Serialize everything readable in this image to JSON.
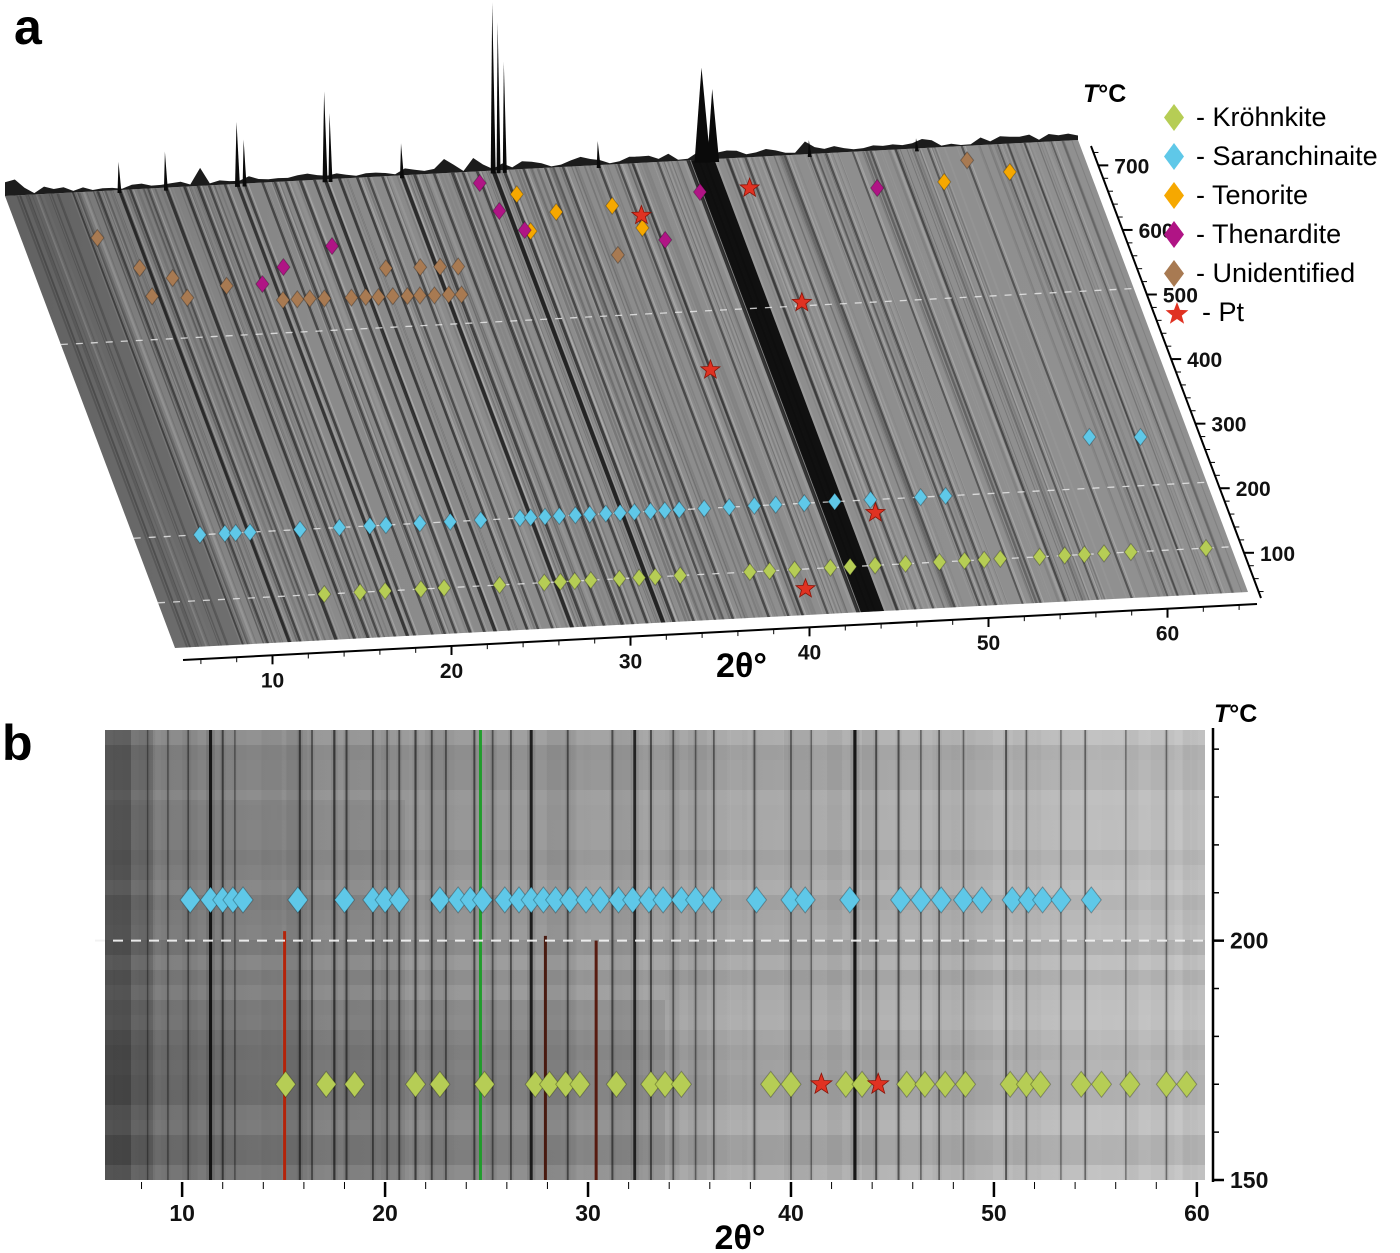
{
  "panels": {
    "a": {
      "label": "a"
    },
    "b": {
      "label": "b"
    }
  },
  "legend": {
    "items": [
      {
        "id": "krohnkite",
        "label": "- Kröhnkite",
        "marker": "diamond",
        "color": "#b6cd55"
      },
      {
        "id": "saranchinaite",
        "label": "- Saranchinaite",
        "marker": "diamond",
        "color": "#5fc8e8"
      },
      {
        "id": "tenorite",
        "label": "- Tenorite",
        "marker": "diamond",
        "color": "#f6a800"
      },
      {
        "id": "thenardite",
        "label": "- Thenardite",
        "marker": "diamond",
        "color": "#b01485"
      },
      {
        "id": "unidentified",
        "label": "- Unidentified",
        "marker": "diamond",
        "color": "#a87a52"
      },
      {
        "id": "pt",
        "label": "- Pt",
        "marker": "star",
        "color": "#e03222"
      }
    ]
  },
  "chart_data": [
    {
      "id": "panel_a",
      "type": "heatmap",
      "projection": "3d-waterfall-xrd-vs-temperature",
      "xlabel": "2θ°",
      "ylabel": "T°C",
      "x_range": [
        5,
        65
      ],
      "x_ticks": [
        10,
        20,
        30,
        40,
        50,
        60
      ],
      "t_range": [
        30,
        730
      ],
      "t_ticks": [
        100,
        200,
        300,
        400,
        500,
        600,
        700
      ],
      "gridlines_t": [
        100,
        200,
        500
      ],
      "diffraction_lines": [
        [
          8.8,
          0.35
        ],
        [
          10.2,
          0.4
        ],
        [
          11.4,
          0.75
        ],
        [
          12.0,
          0.5
        ],
        [
          13.0,
          0.35
        ],
        [
          14.0,
          0.7
        ],
        [
          15.05,
          0.55
        ],
        [
          15.8,
          0.55
        ],
        [
          16.4,
          0.45
        ],
        [
          17.3,
          0.5
        ],
        [
          18.0,
          0.7
        ],
        [
          18.4,
          0.55
        ],
        [
          19.4,
          0.5
        ],
        [
          20.1,
          0.45
        ],
        [
          20.7,
          0.5
        ],
        [
          21.5,
          0.55
        ],
        [
          22.3,
          0.55
        ],
        [
          22.9,
          0.75
        ],
        [
          23.7,
          0.6
        ],
        [
          24.7,
          0.55
        ],
        [
          25.3,
          0.45
        ],
        [
          26.1,
          0.5
        ],
        [
          27.2,
          0.85
        ],
        [
          27.9,
          0.6
        ],
        [
          29.0,
          0.5
        ],
        [
          30.0,
          0.45
        ],
        [
          30.6,
          0.5
        ],
        [
          31.4,
          0.55
        ],
        [
          32.3,
          0.95
        ],
        [
          32.9,
          0.65
        ],
        [
          34.0,
          0.5
        ],
        [
          35.2,
          0.45
        ],
        [
          36.2,
          0.5
        ],
        [
          38.2,
          0.5
        ],
        [
          39.3,
          0.45
        ],
        [
          40.1,
          0.55
        ],
        [
          41.5,
          0.4
        ],
        [
          43.2,
          0.75
        ],
        [
          45.4,
          0.55
        ],
        [
          46.4,
          0.45
        ],
        [
          47.4,
          0.4
        ],
        [
          48.6,
          0.45
        ],
        [
          50.0,
          0.4
        ],
        [
          50.9,
          0.45
        ],
        [
          52.4,
          0.35
        ],
        [
          53.4,
          0.4
        ],
        [
          54.8,
          0.45
        ],
        [
          56.6,
          0.35
        ],
        [
          58.5,
          0.4
        ],
        [
          60.5,
          0.3
        ],
        [
          62.0,
          0.3
        ],
        [
          63.5,
          0.25
        ]
      ],
      "saturated_band": {
        "two_theta": 44.0,
        "width": 1.3
      },
      "spikes": [
        [
          11.4,
          28,
          4
        ],
        [
          14.0,
          36,
          4
        ],
        [
          18.0,
          62,
          5
        ],
        [
          18.4,
          44,
          4
        ],
        [
          22.9,
          88,
          5
        ],
        [
          23.2,
          66,
          4
        ],
        [
          27.2,
          32,
          4
        ],
        [
          32.3,
          168,
          5
        ],
        [
          32.6,
          148,
          4
        ],
        [
          32.95,
          108,
          4
        ],
        [
          38.2,
          24,
          4
        ],
        [
          44.0,
          92,
          16
        ],
        [
          44.6,
          70,
          12
        ],
        [
          50.0,
          14,
          4
        ],
        [
          56.0,
          10,
          4
        ]
      ],
      "series": [
        {
          "id": "krohnkite",
          "name": "Kröhnkite",
          "marker": "diamond",
          "t": 100,
          "two_theta": [
            14.3,
            16.3,
            17.7,
            19.7,
            21.0,
            24.1,
            26.6,
            27.5,
            28.3,
            29.2,
            30.8,
            31.9,
            32.8,
            34.2,
            38.1,
            39.2,
            40.6,
            42.6,
            43.7,
            45.1,
            46.8,
            48.7,
            50.1,
            51.2,
            52.1,
            54.3,
            55.7,
            56.8,
            57.9,
            59.4,
            63.6
          ]
        },
        {
          "id": "saranchinaite",
          "name": "Saranchinaite",
          "marker": "diamond",
          "t": 200,
          "two_theta": [
            8.7,
            10.1,
            10.7,
            11.5,
            14.3,
            16.5,
            18.2,
            19.1,
            21.0,
            22.7,
            24.4,
            26.6,
            27.2,
            28.0,
            28.8,
            29.7,
            30.5,
            31.4,
            32.2,
            33.0,
            33.9,
            34.7,
            35.5,
            36.9,
            38.3,
            39.7,
            40.9,
            42.5,
            44.2,
            46.2,
            49.0,
            50.4
          ],
          "points": [
            [
              278,
              59.5
            ],
            [
              274,
              62.3
            ]
          ]
        },
        {
          "id": "tenorite",
          "name": "Tenorite",
          "marker": "diamond",
          "points": [
            [
              692,
              33.1
            ],
            [
              662,
              34.9
            ],
            [
              635,
              33.1
            ],
            [
              631,
              39.3
            ],
            [
              667,
              38.1
            ],
            [
              677,
              56.8
            ],
            [
              687,
              60.6
            ]
          ]
        },
        {
          "id": "thenardite",
          "name": "Thenardite",
          "marker": "diamond",
          "points": [
            [
              576,
              17.3
            ],
            [
              600,
              18.8
            ],
            [
              628,
              21.9
            ],
            [
              712,
              31.3
            ],
            [
              668,
              31.8
            ],
            [
              637,
              32.8
            ],
            [
              611,
              40.3
            ],
            [
              681,
              43.2
            ],
            [
              673,
              53.0
            ]
          ]
        },
        {
          "id": "unidentified",
          "name": "Unidentified",
          "marker": "diamond",
          "points": [
            [
              659,
              9.2
            ],
            [
              610,
              10.9
            ],
            [
              566,
              11.0
            ],
            [
              592,
              12.5
            ],
            [
              561,
              12.9
            ],
            [
              576,
              15.3
            ],
            [
              550,
              18.1
            ],
            [
              550,
              18.9
            ],
            [
              550,
              19.6
            ],
            [
              549,
              20.4
            ],
            [
              548,
              21.9
            ],
            [
              548,
              22.7
            ],
            [
              547,
              23.4
            ],
            [
              547,
              24.2
            ],
            [
              546,
              25.0
            ],
            [
              546,
              25.7
            ],
            [
              545,
              26.5
            ],
            [
              545,
              27.3
            ],
            [
              544,
              28.0
            ],
            [
              590,
              24.4
            ],
            [
              589,
              26.3
            ],
            [
              588,
              27.4
            ],
            [
              587,
              28.4
            ],
            [
              592,
              37.4
            ],
            [
              708,
              58.5
            ]
          ]
        },
        {
          "id": "pt",
          "name": "Pt",
          "marker": "star",
          "points": [
            [
              70,
              40.8
            ],
            [
              180,
              46.2
            ],
            [
              410,
              40.1
            ],
            [
              505,
              46.5
            ],
            [
              650,
              39.5
            ],
            [
              683,
              46.0
            ]
          ]
        }
      ]
    },
    {
      "id": "panel_b",
      "type": "heatmap",
      "projection": "2d-film-xrd-vs-temperature",
      "xlabel": "2θ°",
      "ylabel": "T°C",
      "x_range": [
        6.2,
        60.4
      ],
      "x_ticks": [
        10,
        20,
        30,
        40,
        50,
        60
      ],
      "t_range": [
        150,
        244
      ],
      "t_ticks_labeled": [
        150,
        200
      ],
      "t_tick_step": 10,
      "dashed_t": 200,
      "lines": [
        {
          "tt": 8.3,
          "i": 0.25
        },
        {
          "tt": 9.3,
          "i": 0.3
        },
        {
          "tt": 10.3,
          "i": 0.35
        },
        {
          "tt": 11.4,
          "i": 0.95
        },
        {
          "tt": 12.0,
          "i": 0.5
        },
        {
          "tt": 12.6,
          "i": 0.3
        },
        {
          "tt": 15.05,
          "i": 1.0,
          "color": "#b71f04",
          "t_max": 202
        },
        {
          "tt": 15.8,
          "i": 0.55
        },
        {
          "tt": 16.4,
          "i": 0.4
        },
        {
          "tt": 17.5,
          "i": 0.6
        },
        {
          "tt": 18.1,
          "i": 0.5
        },
        {
          "tt": 19.4,
          "i": 0.45
        },
        {
          "tt": 20.1,
          "i": 0.35
        },
        {
          "tt": 20.7,
          "i": 0.45
        },
        {
          "tt": 21.5,
          "i": 0.55
        },
        {
          "tt": 22.3,
          "i": 0.45
        },
        {
          "tt": 23.0,
          "i": 0.4
        },
        {
          "tt": 24.7,
          "i": 1.0,
          "color": "#1b9e27"
        },
        {
          "tt": 24.4,
          "i": 0.5
        },
        {
          "tt": 25.3,
          "i": 0.4
        },
        {
          "tt": 26.2,
          "i": 0.45
        },
        {
          "tt": 27.2,
          "i": 0.9
        },
        {
          "tt": 27.9,
          "i": 0.6,
          "color": "#451409",
          "t_max": 201
        },
        {
          "tt": 29.0,
          "i": 0.45
        },
        {
          "tt": 30.4,
          "i": 0.65,
          "color": "#55160a",
          "t_max": 200
        },
        {
          "tt": 31.2,
          "i": 0.5
        },
        {
          "tt": 32.3,
          "i": 0.85
        },
        {
          "tt": 33.1,
          "i": 0.5
        },
        {
          "tt": 34.2,
          "i": 0.4
        },
        {
          "tt": 35.3,
          "i": 0.35
        },
        {
          "tt": 36.2,
          "i": 0.4
        },
        {
          "tt": 38.2,
          "i": 0.45
        },
        {
          "tt": 40.0,
          "i": 0.4
        },
        {
          "tt": 41.0,
          "i": 0.3
        },
        {
          "tt": 43.15,
          "i": 1.0
        },
        {
          "tt": 44.2,
          "i": 0.5
        },
        {
          "tt": 45.3,
          "i": 0.5
        },
        {
          "tt": 46.4,
          "i": 0.35
        },
        {
          "tt": 47.3,
          "i": 0.4
        },
        {
          "tt": 48.5,
          "i": 0.35
        },
        {
          "tt": 50.6,
          "i": 0.5
        },
        {
          "tt": 51.6,
          "i": 0.35
        },
        {
          "tt": 53.3,
          "i": 0.3
        },
        {
          "tt": 54.5,
          "i": 0.4
        },
        {
          "tt": 56.5,
          "i": 0.3
        },
        {
          "tt": 58.5,
          "i": 0.35
        }
      ],
      "series": [
        {
          "id": "saranchinaite",
          "name": "Saranchinaite",
          "marker": "diamond",
          "t": 208.5,
          "two_theta": [
            10.4,
            11.4,
            12.0,
            12.5,
            13.0,
            15.7,
            18.0,
            19.4,
            20.0,
            20.7,
            22.7,
            23.6,
            24.2,
            24.8,
            25.9,
            26.6,
            27.2,
            27.8,
            28.4,
            29.1,
            29.9,
            30.6,
            31.5,
            32.2,
            33.0,
            33.7,
            34.6,
            35.3,
            36.1,
            38.3,
            40.0,
            40.7,
            42.9,
            45.4,
            46.4,
            47.4,
            48.5,
            49.4,
            50.9,
            51.7,
            52.4,
            53.3,
            54.8
          ]
        },
        {
          "id": "krohnkite",
          "name": "Kröhnkite",
          "marker": "diamond",
          "t": 170,
          "two_theta": [
            15.1,
            17.1,
            18.5,
            21.5,
            22.7,
            24.9,
            27.4,
            28.1,
            28.9,
            29.6,
            31.4,
            33.1,
            33.8,
            34.6,
            39.0,
            40.0,
            42.7,
            43.5,
            45.7,
            46.6,
            47.6,
            48.6,
            50.8,
            51.6,
            52.3,
            54.3,
            55.3,
            56.7,
            58.5,
            59.5
          ]
        },
        {
          "id": "pt",
          "name": "Pt",
          "marker": "star",
          "t": 170,
          "two_theta": [
            41.5,
            44.3
          ]
        }
      ]
    }
  ]
}
